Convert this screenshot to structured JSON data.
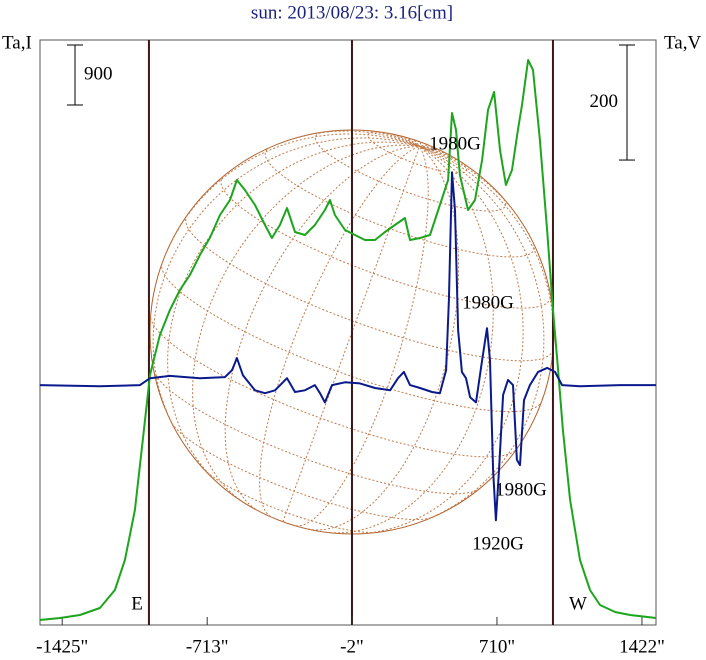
{
  "chart_data": {
    "type": "line",
    "title": "sun: 2013/08/23: 3.16[cm]",
    "ylabel": "Ta,I",
    "y2label": "Ta,V",
    "xlim": [
      -1534,
      1491
    ],
    "ylim": [
      -75,
      8700
    ],
    "y2lim": [
      -417,
      600
    ],
    "xticks": [
      {
        "value": -1425,
        "label": "-1425\""
      },
      {
        "value": -713,
        "label": "-713\""
      },
      {
        "value": -2,
        "label": "-2\""
      },
      {
        "value": 710,
        "label": "710\""
      },
      {
        "value": 1422,
        "label": "1422\""
      }
    ],
    "vlines": [
      -999,
      -2,
      985
    ],
    "limb_labels": [
      "E",
      "W"
    ],
    "scale_bars": [
      {
        "value": 900,
        "axis": "y"
      },
      {
        "value": 200,
        "axis": "y2"
      }
    ],
    "annotations": [
      "1980G",
      "1980G",
      "1980G",
      "1920G"
    ],
    "series": [
      {
        "color": "#1ea51e",
        "x": [
          -1535,
          -1436,
          -1338,
          -1240,
          -1166,
          -1117,
          -1068,
          -1029,
          -994,
          -945,
          -896,
          -847,
          -798,
          -749,
          -700,
          -650,
          -601,
          -567,
          -528,
          -478,
          -429,
          -395,
          -356,
          -321,
          -282,
          -233,
          -184,
          -135,
          -110,
          -86,
          -36,
          13,
          62,
          111,
          160,
          209,
          258,
          283,
          332,
          381,
          430,
          470,
          489,
          509,
          528,
          568,
          602,
          637,
          666,
          696,
          725,
          754,
          784,
          813,
          833,
          863,
          887,
          921,
          956,
          985,
          1010,
          1034,
          1069,
          1118,
          1167,
          1216,
          1290,
          1364,
          1491
        ],
        "values": [
          0,
          30,
          75,
          180,
          450,
          900,
          1650,
          2700,
          3675,
          4275,
          4650,
          4950,
          5175,
          5475,
          5730,
          6075,
          6300,
          6600,
          6450,
          6225,
          5925,
          5730,
          5925,
          6180,
          5820,
          5775,
          5925,
          6150,
          6300,
          6075,
          5850,
          5775,
          5700,
          5700,
          5820,
          5925,
          6030,
          5700,
          5730,
          5775,
          6225,
          6600,
          7605,
          7350,
          6675,
          6150,
          6300,
          6900,
          7650,
          7920,
          7050,
          6525,
          6750,
          7350,
          7725,
          8400,
          8250,
          7200,
          5850,
          4650,
          3750,
          2850,
          1800,
          900,
          450,
          225,
          120,
          75,
          30
        ]
      },
      {
        "color": "#0a1a8c",
        "axis": "y2",
        "x": [
          -1535,
          -1240,
          -1043,
          -994,
          -896,
          -749,
          -626,
          -591,
          -567,
          -537,
          -478,
          -429,
          -380,
          -321,
          -282,
          -233,
          -184,
          -159,
          -135,
          -100,
          -36,
          37,
          111,
          185,
          224,
          253,
          283,
          332,
          391,
          430,
          460,
          474,
          489,
          504,
          519,
          538,
          558,
          578,
          607,
          637,
          661,
          676,
          691,
          705,
          720,
          740,
          764,
          789,
          808,
          823,
          843,
          872,
          912,
          956,
          995,
          1030,
          1118,
          1314,
          1491
        ],
        "values": [
          0,
          -2,
          0,
          12,
          16,
          12,
          14,
          26,
          47,
          17,
          -9,
          -14,
          -9,
          12,
          -12,
          -9,
          0,
          -14,
          -30,
          0,
          5,
          3,
          -5,
          -9,
          12,
          23,
          0,
          -5,
          -12,
          -14,
          26,
          148,
          370,
          304,
          96,
          23,
          12,
          -21,
          -30,
          43,
          99,
          43,
          -148,
          -235,
          -148,
          -17,
          9,
          0,
          -130,
          -139,
          -26,
          0,
          23,
          30,
          23,
          0,
          -2,
          0,
          0
        ]
      }
    ]
  }
}
